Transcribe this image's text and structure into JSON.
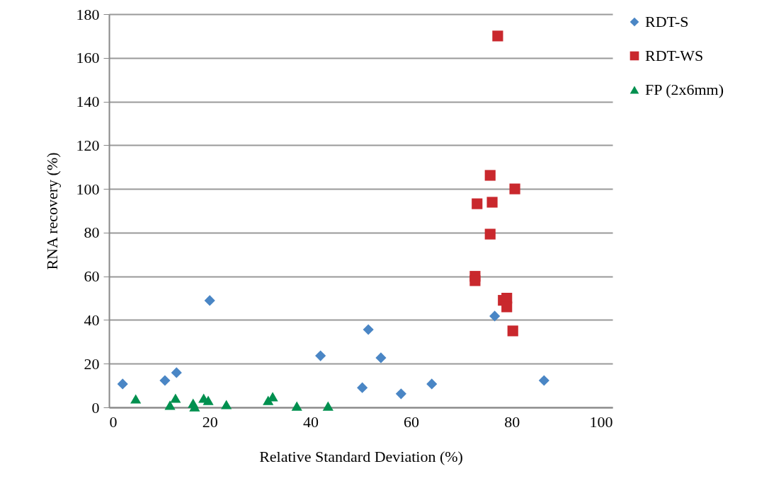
{
  "chart_data": {
    "type": "scatter",
    "xlabel": "Relative Standard Deviation (%)",
    "ylabel": "RNA recovery (%)",
    "xlim": [
      0,
      100
    ],
    "xticks": [
      0,
      20,
      40,
      60,
      80,
      100
    ],
    "ylim": [
      0,
      180
    ],
    "yticks": [
      0,
      20,
      40,
      60,
      80,
      100,
      120,
      140,
      160,
      180
    ],
    "grid": "y",
    "legend": "right",
    "series": [
      {
        "name": "RDT-S",
        "color": "#4a86c5",
        "marker": "diamond",
        "x": [
          2.7,
          11.1,
          13.4,
          20,
          42,
          51.5,
          54,
          50.3,
          58,
          64.1,
          76.6,
          86.4
        ],
        "values": [
          10.7,
          12.3,
          15.9,
          48.9,
          23.6,
          35.6,
          22.7,
          9,
          6.2,
          10.7,
          41.8,
          12.3
        ]
      },
      {
        "name": "RDT-WS",
        "color": "#c9282d",
        "marker": "square",
        "x": [
          77.2,
          75.7,
          80.6,
          73.1,
          76.1,
          75.7,
          72.7,
          72.7,
          78.3,
          79,
          79,
          80.2
        ],
        "values": [
          170,
          106.2,
          100,
          93.2,
          93.9,
          79.3,
          60,
          58,
          49,
          50,
          46,
          35
        ]
      },
      {
        "name": "FP (2x6mm)",
        "color": "#00904f",
        "marker": "triangle",
        "x": [
          5.3,
          12.1,
          13.2,
          16.7,
          17,
          18.8,
          19.7,
          23.3,
          31.6,
          32.5,
          37.3,
          43.5
        ],
        "values": [
          3.9,
          1,
          4.2,
          1.9,
          0.3,
          4.2,
          3.2,
          1.3,
          3.2,
          4.9,
          0.6,
          0.6
        ]
      }
    ]
  }
}
